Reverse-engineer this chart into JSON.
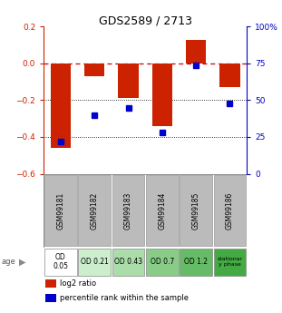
{
  "title": "GDS2589 / 2713",
  "samples": [
    "GSM99181",
    "GSM99182",
    "GSM99183",
    "GSM99184",
    "GSM99185",
    "GSM99186"
  ],
  "log2_ratio": [
    -0.46,
    -0.07,
    -0.19,
    -0.34,
    0.13,
    -0.13
  ],
  "percentile_rank": [
    22,
    40,
    45,
    28,
    74,
    48
  ],
  "ylim_left": [
    -0.6,
    0.2
  ],
  "ylim_right": [
    0,
    100
  ],
  "left_ticks": [
    0.2,
    0.0,
    -0.2,
    -0.4,
    -0.6
  ],
  "right_ticks": [
    100,
    75,
    50,
    25,
    0
  ],
  "age_labels": [
    "OD\n0.05",
    "OD 0.21",
    "OD 0.43",
    "OD 0.7",
    "OD 1.2",
    "stationar\ny phase"
  ],
  "age_colors": [
    "#ffffff",
    "#cceecc",
    "#aaddaa",
    "#88cc88",
    "#66bb66",
    "#44aa44"
  ],
  "bar_color": "#cc2200",
  "dot_color": "#0000cc",
  "zero_line_color": "#cc0000",
  "dotted_line_color": "#000000",
  "bg_color": "#ffffff",
  "header_gray": "#bbbbbb",
  "legend_bar_label": "log2 ratio",
  "legend_dot_label": "percentile rank within the sample"
}
